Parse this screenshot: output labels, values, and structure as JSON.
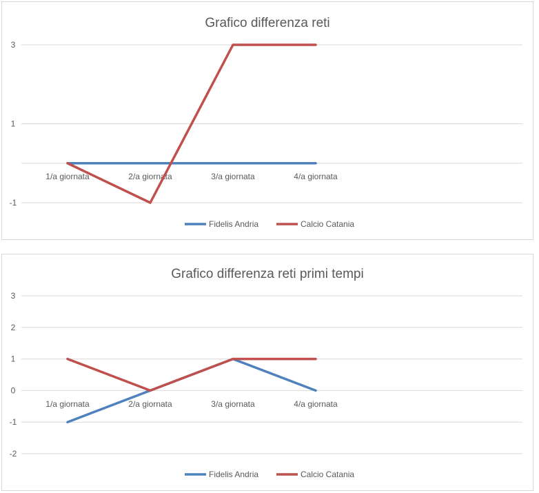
{
  "charts": [
    {
      "type": "line",
      "title": "Grafico differenza reti",
      "categories": [
        "1/a giornata",
        "2/a giornata",
        "3/a giornata",
        "4/a giornata"
      ],
      "y_ticks": [
        "3",
        "1",
        "-1"
      ],
      "ylim": [
        -1,
        3
      ],
      "grid": true,
      "legend_position": "bottom",
      "series": [
        {
          "name": "Fidelis Andria",
          "color": "#4f81bd",
          "values": [
            0,
            0,
            0,
            0
          ]
        },
        {
          "name": "Calcio Catania",
          "color": "#c0504d",
          "values": [
            0,
            -1,
            3,
            3
          ]
        }
      ]
    },
    {
      "type": "line",
      "title": "Grafico differenza reti primi tempi",
      "categories": [
        "1/a giornata",
        "2/a giornata",
        "3/a giornata",
        "4/a giornata"
      ],
      "y_ticks": [
        "3",
        "2",
        "1",
        "0",
        "-1",
        "-2"
      ],
      "ylim": [
        -2,
        3
      ],
      "grid": true,
      "legend_position": "bottom",
      "series": [
        {
          "name": "Fidelis Andria",
          "color": "#4f81bd",
          "values": [
            -1,
            0,
            1,
            0
          ]
        },
        {
          "name": "Calcio Catania",
          "color": "#c0504d",
          "values": [
            1,
            0,
            1,
            1
          ]
        }
      ]
    }
  ]
}
